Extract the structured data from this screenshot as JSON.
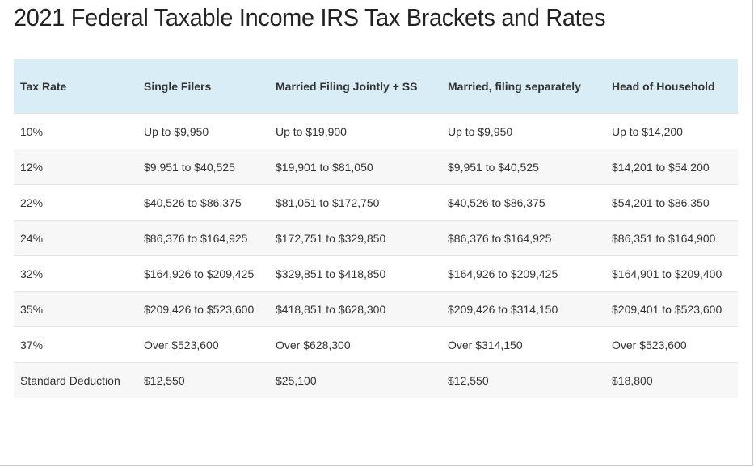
{
  "header": {
    "title": "2021 Federal Taxable Income IRS Tax Brackets and Rates"
  },
  "table": {
    "columns": [
      "Tax Rate",
      "Single Filers",
      "Married Filing Jointly + SS",
      "Married, filing separately",
      "Head of Household"
    ],
    "rows": [
      [
        "10%",
        "Up to $9,950",
        "Up to $19,900",
        "Up to $9,950",
        "Up to $14,200"
      ],
      [
        "12%",
        "$9,951 to $40,525",
        "$19,901 to $81,050",
        "$9,951 to $40,525",
        "$14,201 to $54,200"
      ],
      [
        "22%",
        "$40,526 to $86,375",
        "$81,051 to $172,750",
        "$40,526 to $86,375",
        "$54,201 to $86,350"
      ],
      [
        "24%",
        "$86,376 to $164,925",
        "$172,751 to $329,850",
        "$86,376 to $164,925",
        "$86,351 to $164,900"
      ],
      [
        "32%",
        "$164,926 to $209,425",
        "$329,851 to $418,850",
        "$164,926 to $209,425",
        "$164,901 to $209,400"
      ],
      [
        "35%",
        "$209,426 to $523,600",
        "$418,851 to $628,300",
        "$209,426 to $314,150",
        "$209,401 to $523,600"
      ],
      [
        "37%",
        "Over $523,600",
        "Over $628,300",
        "Over $314,150",
        "Over $523,600"
      ],
      [
        "Standard Deduction",
        "$12,550",
        "$25,100",
        "$12,550",
        "$18,800"
      ]
    ]
  }
}
